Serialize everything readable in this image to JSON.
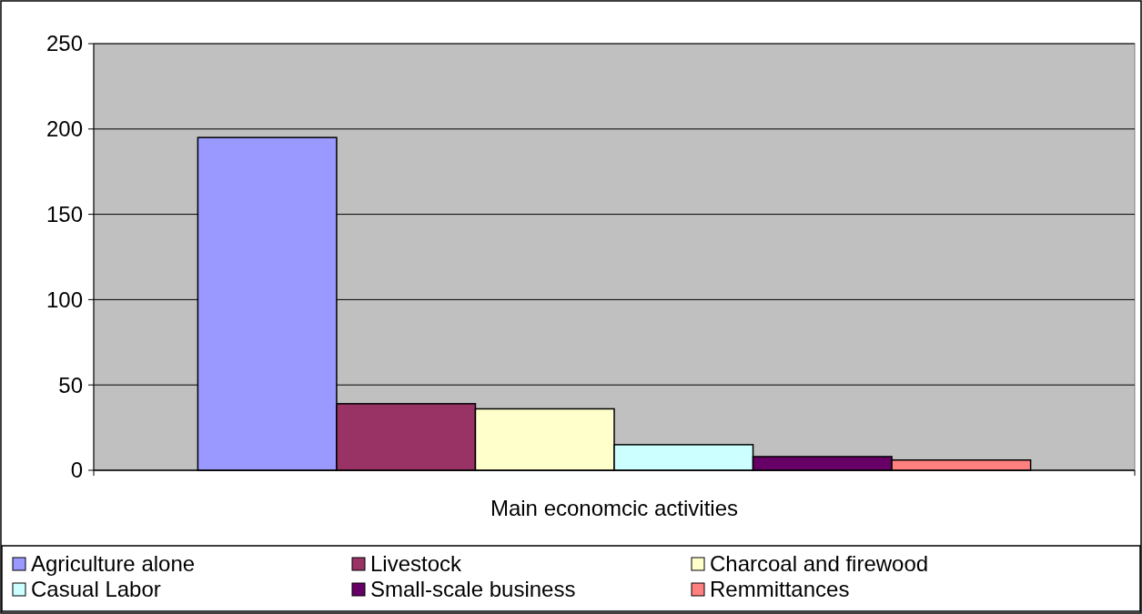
{
  "chart_data": {
    "type": "bar",
    "xlabel": "Main economcic activities",
    "categories": [
      null
    ],
    "series": [
      {
        "name": "Agriculture alone",
        "color": "#9999ff",
        "values": [
          195
        ]
      },
      {
        "name": "Livestock",
        "color": "#993366",
        "values": [
          39
        ]
      },
      {
        "name": "Charcoal and firewood",
        "color": "#ffffcc",
        "values": [
          36
        ]
      },
      {
        "name": "Casual Labor",
        "color": "#ccffff",
        "values": [
          15
        ]
      },
      {
        "name": "Small-scale business",
        "color": "#660066",
        "values": [
          8
        ]
      },
      {
        "name": "Remmittances",
        "color": "#ff8080",
        "values": [
          6
        ]
      }
    ],
    "ylim": [
      0,
      250
    ],
    "yticks": [
      0,
      50,
      100,
      150,
      200,
      250
    ],
    "grid": "y",
    "legend": "bottom"
  }
}
